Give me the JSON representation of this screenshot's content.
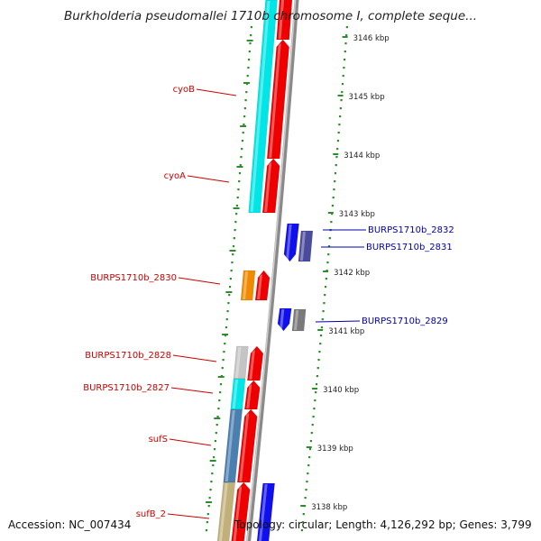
{
  "title": "Burkholderia pseudomallei 1710b chromosome I, complete seque...",
  "footer": {
    "accession": "Accession: NC_007434",
    "summary": "Topology: circular; Length: 4,126,292 bp; Genes: 3,799"
  },
  "colors": {
    "tick": "#2e8b2e",
    "backbone": "#8a8a8a",
    "label_red": "#cc0000",
    "label_blue": "#0000aa",
    "red": "#ee0000",
    "cyan": "#00e5e5",
    "blue": "#1010ee",
    "slate": "#4b4b9e",
    "orange": "#f08a00",
    "gray": "#7a7a7a",
    "lightgray": "#c4c4c4",
    "steel": "#4a7fb0",
    "khaki": "#c2b07a"
  },
  "scale_labels": [
    "3146 kbp",
    "3145 kbp",
    "3144 kbp",
    "3143 kbp",
    "3142 kbp",
    "3141 kbp",
    "3140 kbp",
    "3139 kbp",
    "3138 kbp"
  ],
  "gene_labels": [
    {
      "id": "cyoB",
      "text": "cyoB",
      "color": "red"
    },
    {
      "id": "cyoA",
      "text": "cyoA",
      "color": "red"
    },
    {
      "id": "BURPS1710b_2830",
      "text": "BURPS1710b_2830",
      "color": "red"
    },
    {
      "id": "BURPS1710b_2828",
      "text": "BURPS1710b_2828",
      "color": "red"
    },
    {
      "id": "BURPS1710b_2827",
      "text": "BURPS1710b_2827",
      "color": "red"
    },
    {
      "id": "sufS",
      "text": "sufS",
      "color": "red"
    },
    {
      "id": "sufB_2",
      "text": "sufB_2",
      "color": "red"
    },
    {
      "id": "BURPS1710b_2832",
      "text": "BURPS1710b_2832",
      "color": "blue"
    },
    {
      "id": "BURPS1710b_2831",
      "text": "BURPS1710b_2831",
      "color": "blue"
    },
    {
      "id": "BURPS1710b_2829",
      "text": "BURPS1710b_2829",
      "color": "blue"
    }
  ]
}
